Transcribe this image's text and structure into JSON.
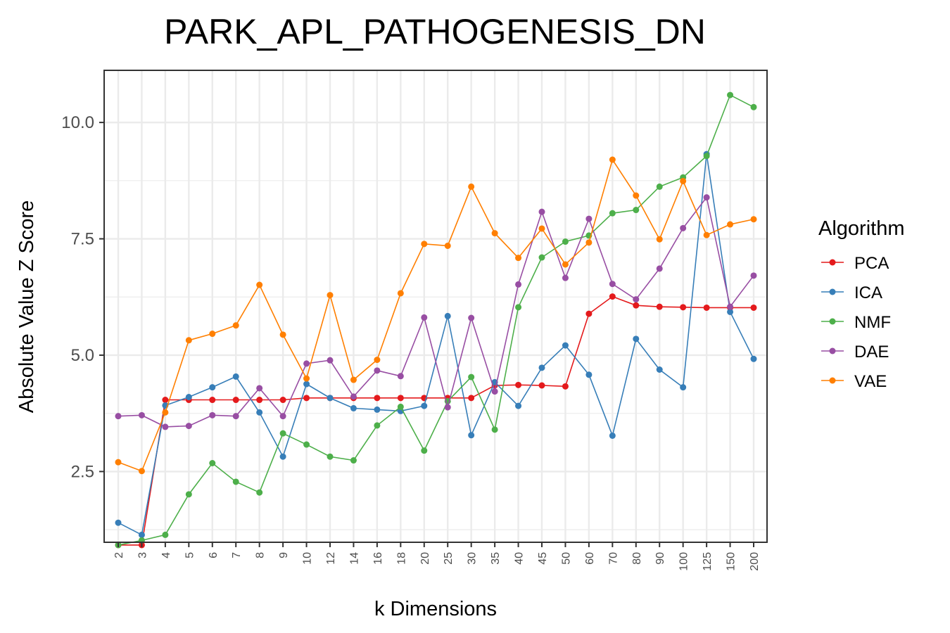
{
  "chart_data": {
    "type": "line",
    "title": "PARK_APL_PATHOGENESIS_DN",
    "xlabel": "k Dimensions",
    "ylabel": "Absolute Value Z Score",
    "ylim": [
      0.98,
      11.12
    ],
    "yticks": [
      2.5,
      5.0,
      7.5,
      10.0
    ],
    "ytick_labels": [
      "2.5",
      "5.0",
      "7.5",
      "10.0"
    ],
    "grid": true,
    "legend_title": "Algorithm",
    "legend_position": "right",
    "categories": [
      "2",
      "3",
      "4",
      "5",
      "6",
      "7",
      "8",
      "9",
      "10",
      "12",
      "14",
      "16",
      "18",
      "20",
      "25",
      "30",
      "35",
      "40",
      "45",
      "50",
      "60",
      "70",
      "80",
      "90",
      "100",
      "125",
      "150",
      "200"
    ],
    "series": [
      {
        "name": "PCA",
        "color": "#e41a1c",
        "values": [
          0.92,
          0.92,
          4.04,
          4.04,
          4.04,
          4.04,
          4.04,
          4.04,
          4.08,
          4.08,
          4.08,
          4.08,
          4.08,
          4.08,
          4.08,
          4.08,
          4.35,
          4.36,
          4.35,
          4.33,
          5.89,
          6.26,
          6.07,
          6.04,
          6.03,
          6.02,
          6.02,
          6.02
        ]
      },
      {
        "name": "ICA",
        "color": "#377eb8",
        "values": [
          1.4,
          1.14,
          3.92,
          4.1,
          4.31,
          4.54,
          3.77,
          2.82,
          4.38,
          4.08,
          3.86,
          3.83,
          3.8,
          3.91,
          5.84,
          3.28,
          4.42,
          3.91,
          4.73,
          5.21,
          4.58,
          3.27,
          5.35,
          4.69,
          4.31,
          9.32,
          5.93,
          4.92
        ]
      },
      {
        "name": "NMF",
        "color": "#4daf4a",
        "values": [
          0.92,
          1.02,
          1.14,
          2.01,
          2.68,
          2.28,
          2.05,
          3.32,
          3.08,
          2.82,
          2.74,
          3.49,
          3.89,
          2.95,
          4.01,
          4.53,
          3.4,
          6.03,
          7.1,
          7.44,
          7.57,
          8.05,
          8.12,
          8.62,
          8.82,
          9.28,
          10.59,
          10.33
        ]
      },
      {
        "name": "DAE",
        "color": "#984ea3",
        "values": [
          3.69,
          3.71,
          3.46,
          3.48,
          3.71,
          3.69,
          4.29,
          3.69,
          4.82,
          4.89,
          4.11,
          4.67,
          4.55,
          5.81,
          3.88,
          5.8,
          4.22,
          6.52,
          8.08,
          6.66,
          7.93,
          6.53,
          6.2,
          6.86,
          7.73,
          8.39,
          6.04,
          6.71
        ]
      },
      {
        "name": "VAE",
        "color": "#ff7f00",
        "values": [
          2.7,
          2.51,
          3.77,
          5.32,
          5.46,
          5.64,
          6.51,
          5.44,
          4.5,
          6.29,
          4.47,
          4.9,
          6.33,
          7.39,
          7.35,
          8.62,
          7.62,
          7.09,
          7.72,
          6.95,
          7.42,
          9.2,
          8.43,
          7.49,
          8.74,
          7.58,
          7.81,
          7.92
        ]
      }
    ]
  }
}
